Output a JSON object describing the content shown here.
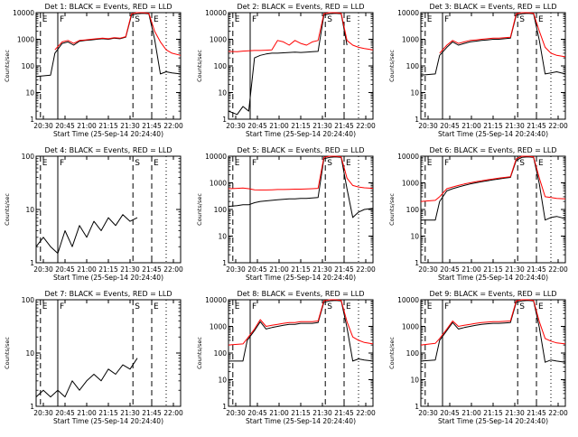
{
  "figure": {
    "x_label": "Start Time (25-Sep-14 20:24:40)",
    "y_label": "Counts/sec",
    "x_ticks": [
      "20:30",
      "20:45",
      "21:00",
      "21:15",
      "21:30",
      "21:45",
      "22:00"
    ],
    "colors": {
      "events": "#000000",
      "lld": "#ff0000",
      "axes": "#000000",
      "background": "#ffffff"
    }
  },
  "chart_data": [
    {
      "type": "line",
      "title": "Det 1: BLACK = Events, RED = LLD",
      "yscale": "log",
      "ylim": [
        1,
        10000
      ],
      "y_ticks": [
        "1",
        "10",
        "100",
        "1000",
        "10000"
      ],
      "xlim": [
        0,
        100
      ],
      "x": [
        0,
        10,
        13,
        18,
        22,
        26,
        30,
        34,
        38,
        42,
        46,
        50,
        54,
        58,
        62,
        66,
        70,
        74,
        78,
        82,
        86,
        90,
        94,
        100
      ],
      "events_gaps": [
        [
          10,
          13
        ],
        [
          82,
          86
        ]
      ],
      "lld_gaps": [
        [
          0,
          13
        ]
      ],
      "series": [
        {
          "name": "Events",
          "color": "#000000",
          "values": [
            40,
            45,
            300,
            700,
            800,
            600,
            850,
            900,
            950,
            1000,
            1050,
            1000,
            1100,
            1050,
            1200,
            8000,
            9000,
            9500,
            9000,
            1000,
            50,
            60,
            55,
            50
          ]
        },
        {
          "name": "LLD",
          "color": "#ff0000",
          "values": [
            0,
            0,
            400,
            800,
            900,
            700,
            900,
            950,
            1000,
            1050,
            1100,
            1050,
            1150,
            1100,
            1250,
            9000,
            10000,
            10000,
            9500,
            2000,
            800,
            400,
            300,
            250
          ]
        }
      ],
      "markers": [
        {
          "label": "E",
          "x": 3
        },
        {
          "label": "F",
          "x": 15
        },
        {
          "label": "S",
          "x": 67
        },
        {
          "label": "E",
          "x": 80
        }
      ]
    },
    {
      "type": "line",
      "title": "Det 2: BLACK = Events, RED = LLD",
      "yscale": "log",
      "ylim": [
        1,
        10000
      ],
      "y_ticks": [
        "1",
        "10",
        "100",
        "1000",
        "10000"
      ],
      "xlim": [
        0,
        100
      ],
      "x": [
        0,
        6,
        10,
        14,
        18,
        22,
        26,
        30,
        34,
        38,
        42,
        46,
        50,
        54,
        58,
        62,
        66,
        70,
        74,
        78,
        82,
        86,
        90,
        94,
        100
      ],
      "events_gaps": [
        [
          12,
          14
        ],
        [
          82,
          100
        ]
      ],
      "lld_gaps": [],
      "series": [
        {
          "name": "Events",
          "color": "#000000",
          "values": [
            2,
            1.5,
            3,
            2,
            200,
            250,
            280,
            300,
            300,
            310,
            320,
            330,
            320,
            330,
            340,
            350,
            8000,
            9000,
            9500,
            9000,
            600,
            2,
            1,
            1,
            1
          ]
        },
        {
          "name": "LLD",
          "color": "#ff0000",
          "values": [
            350,
            340,
            360,
            370,
            380,
            380,
            390,
            400,
            900,
            800,
            600,
            900,
            700,
            600,
            800,
            900,
            9000,
            10000,
            10000,
            9500,
            900,
            600,
            500,
            450,
            400
          ]
        }
      ],
      "markers": [
        {
          "label": "E",
          "x": 3
        },
        {
          "label": "F",
          "x": 15
        },
        {
          "label": "S",
          "x": 67
        },
        {
          "label": "E",
          "x": 80
        }
      ]
    },
    {
      "type": "line",
      "title": "Det 3: BLACK = Events, RED = LLD",
      "yscale": "log",
      "ylim": [
        1,
        10000
      ],
      "y_ticks": [
        "1",
        "10",
        "100",
        "1000",
        "10000"
      ],
      "xlim": [
        0,
        100
      ],
      "x": [
        0,
        10,
        13,
        18,
        22,
        26,
        30,
        34,
        38,
        42,
        46,
        50,
        54,
        58,
        62,
        66,
        70,
        74,
        78,
        82,
        86,
        90,
        94,
        100
      ],
      "events_gaps": [
        [
          10,
          13
        ],
        [
          82,
          86
        ]
      ],
      "lld_gaps": [
        [
          0,
          13
        ]
      ],
      "series": [
        {
          "name": "Events",
          "color": "#000000",
          "values": [
            45,
            50,
            250,
            500,
            800,
            600,
            700,
            800,
            850,
            900,
            950,
            1000,
            1000,
            1050,
            1100,
            8000,
            9000,
            9500,
            9000,
            900,
            50,
            55,
            60,
            50
          ]
        },
        {
          "name": "LLD",
          "color": "#ff0000",
          "values": [
            0,
            0,
            300,
            600,
            900,
            700,
            800,
            900,
            950,
            1000,
            1050,
            1100,
            1100,
            1150,
            1200,
            9000,
            10000,
            10000,
            9500,
            2000,
            500,
            300,
            250,
            220
          ]
        }
      ],
      "markers": [
        {
          "label": "E",
          "x": 3
        },
        {
          "label": "F",
          "x": 15
        },
        {
          "label": "S",
          "x": 67
        },
        {
          "label": "E",
          "x": 80
        }
      ]
    },
    {
      "type": "line",
      "title": "Det 4: BLACK = Events, RED = LLD",
      "yscale": "log",
      "ylim": [
        1,
        100
      ],
      "y_ticks": [
        "1",
        "10",
        "100"
      ],
      "xlim": [
        0,
        100
      ],
      "x": [
        0,
        5,
        10,
        15,
        20,
        25,
        30,
        35,
        40,
        45,
        50,
        55,
        60,
        65,
        70
      ],
      "events_gaps": [],
      "lld_gaps": [],
      "series": [
        {
          "name": "Events",
          "color": "#000000",
          "values": [
            2,
            3,
            2,
            1.5,
            4,
            2,
            5,
            3,
            6,
            4,
            7,
            5,
            8,
            6,
            7
          ]
        }
      ],
      "markers": [
        {
          "label": "E",
          "x": 3
        },
        {
          "label": "F",
          "x": 15
        },
        {
          "label": "S",
          "x": 67
        },
        {
          "label": "E",
          "x": 80
        }
      ]
    },
    {
      "type": "line",
      "title": "Det 5: BLACK = Events, RED = LLD",
      "yscale": "log",
      "ylim": [
        1,
        10000
      ],
      "y_ticks": [
        "1",
        "10",
        "100",
        "1000",
        "10000"
      ],
      "xlim": [
        0,
        100
      ],
      "x": [
        0,
        6,
        10,
        14,
        18,
        22,
        26,
        30,
        34,
        38,
        42,
        46,
        50,
        54,
        58,
        62,
        66,
        70,
        74,
        78,
        82,
        86,
        90,
        94,
        100
      ],
      "events_gaps": [
        [
          82,
          86
        ]
      ],
      "lld_gaps": [],
      "series": [
        {
          "name": "Events",
          "color": "#000000",
          "values": [
            130,
            140,
            150,
            150,
            180,
            200,
            210,
            220,
            230,
            240,
            250,
            250,
            260,
            260,
            270,
            280,
            8000,
            9000,
            9500,
            9000,
            600,
            50,
            80,
            100,
            110
          ]
        },
        {
          "name": "LLD",
          "color": "#ff0000",
          "values": [
            600,
            620,
            640,
            600,
            550,
            540,
            540,
            550,
            560,
            560,
            570,
            580,
            580,
            590,
            600,
            620,
            9000,
            10000,
            10000,
            9500,
            1500,
            800,
            700,
            650,
            620
          ]
        }
      ],
      "markers": [
        {
          "label": "E",
          "x": 3
        },
        {
          "label": "F",
          "x": 15
        },
        {
          "label": "S",
          "x": 67
        },
        {
          "label": "E",
          "x": 80
        }
      ]
    },
    {
      "type": "line",
      "title": "Det 6: BLACK = Events, RED = LLD",
      "yscale": "log",
      "ylim": [
        1,
        10000
      ],
      "y_ticks": [
        "1",
        "10",
        "100",
        "1000",
        "10000"
      ],
      "xlim": [
        0,
        100
      ],
      "x": [
        0,
        10,
        13,
        18,
        22,
        26,
        30,
        34,
        38,
        42,
        46,
        50,
        54,
        58,
        62,
        66,
        70,
        74,
        78,
        82,
        86,
        90,
        94,
        100
      ],
      "events_gaps": [
        [
          10,
          13
        ],
        [
          82,
          86
        ]
      ],
      "lld_gaps": [],
      "series": [
        {
          "name": "Events",
          "color": "#000000",
          "values": [
            40,
            40,
            200,
            500,
            600,
            700,
            800,
            900,
            1000,
            1100,
            1200,
            1300,
            1400,
            1500,
            1600,
            7000,
            9000,
            9500,
            9000,
            900,
            40,
            50,
            55,
            45
          ]
        },
        {
          "name": "LLD",
          "color": "#ff0000",
          "values": [
            200,
            220,
            300,
            600,
            700,
            800,
            900,
            1000,
            1100,
            1200,
            1300,
            1400,
            1500,
            1600,
            1700,
            8000,
            10000,
            10000,
            9500,
            1500,
            300,
            280,
            260,
            250
          ]
        }
      ],
      "markers": [
        {
          "label": "E",
          "x": 3
        },
        {
          "label": "F",
          "x": 15
        },
        {
          "label": "S",
          "x": 67
        },
        {
          "label": "E",
          "x": 80
        }
      ]
    },
    {
      "type": "line",
      "title": "Det 7: BLACK = Events, RED = LLD",
      "yscale": "log",
      "ylim": [
        1,
        100
      ],
      "y_ticks": [
        "1",
        "10",
        "100"
      ],
      "xlim": [
        0,
        100
      ],
      "x": [
        0,
        5,
        10,
        15,
        20,
        25,
        30,
        35,
        40,
        45,
        50,
        55,
        60,
        65,
        70
      ],
      "events_gaps": [],
      "lld_gaps": [],
      "series": [
        {
          "name": "Events",
          "color": "#000000",
          "values": [
            1.5,
            2,
            1.5,
            2,
            1.5,
            3,
            2,
            3,
            4,
            3,
            5,
            4,
            6,
            5,
            8
          ]
        }
      ],
      "markers": [
        {
          "label": "E",
          "x": 3
        },
        {
          "label": "F",
          "x": 15
        },
        {
          "label": "S",
          "x": 67
        },
        {
          "label": "E",
          "x": 80
        }
      ]
    },
    {
      "type": "line",
      "title": "Det 8: BLACK = Events, RED = LLD",
      "yscale": "log",
      "ylim": [
        1,
        10000
      ],
      "y_ticks": [
        "1",
        "10",
        "100",
        "1000",
        "10000"
      ],
      "xlim": [
        0,
        100
      ],
      "x": [
        0,
        10,
        13,
        18,
        22,
        26,
        30,
        34,
        38,
        42,
        46,
        50,
        54,
        58,
        62,
        66,
        70,
        74,
        78,
        82,
        86,
        90,
        94,
        100
      ],
      "events_gaps": [
        [
          10,
          13
        ],
        [
          82,
          86
        ]
      ],
      "lld_gaps": [],
      "series": [
        {
          "name": "Events",
          "color": "#000000",
          "values": [
            50,
            50,
            300,
            700,
            1500,
            800,
            900,
            1000,
            1100,
            1200,
            1200,
            1300,
            1300,
            1300,
            1400,
            8000,
            9000,
            9500,
            9000,
            900,
            50,
            60,
            55,
            50
          ]
        },
        {
          "name": "LLD",
          "color": "#ff0000",
          "values": [
            200,
            220,
            350,
            800,
            1800,
            1000,
            1100,
            1200,
            1300,
            1400,
            1400,
            1500,
            1500,
            1500,
            1600,
            9000,
            10000,
            10000,
            9500,
            1500,
            400,
            300,
            250,
            220
          ]
        }
      ],
      "markers": [
        {
          "label": "E",
          "x": 3
        },
        {
          "label": "F",
          "x": 15
        },
        {
          "label": "S",
          "x": 67
        },
        {
          "label": "E",
          "x": 80
        }
      ]
    },
    {
      "type": "line",
      "title": "Det 9: BLACK = Events, RED = LLD",
      "yscale": "log",
      "ylim": [
        1,
        10000
      ],
      "y_ticks": [
        "1",
        "10",
        "100",
        "1000",
        "10000"
      ],
      "xlim": [
        0,
        100
      ],
      "x": [
        0,
        10,
        13,
        18,
        22,
        26,
        30,
        34,
        38,
        42,
        46,
        50,
        54,
        58,
        62,
        66,
        70,
        74,
        78,
        82,
        86,
        90,
        94,
        100
      ],
      "events_gaps": [
        [
          10,
          13
        ],
        [
          82,
          86
        ]
      ],
      "lld_gaps": [],
      "series": [
        {
          "name": "Events",
          "color": "#000000",
          "values": [
            50,
            55,
            300,
            700,
            1400,
            800,
            900,
            1000,
            1100,
            1200,
            1250,
            1300,
            1300,
            1350,
            1400,
            8000,
            9000,
            9500,
            9000,
            900,
            45,
            55,
            50,
            45
          ]
        },
        {
          "name": "LLD",
          "color": "#ff0000",
          "values": [
            200,
            230,
            350,
            800,
            1600,
            1000,
            1100,
            1200,
            1300,
            1400,
            1450,
            1500,
            1500,
            1550,
            1600,
            9000,
            10000,
            10000,
            9500,
            1500,
            350,
            280,
            240,
            220
          ]
        }
      ],
      "markers": [
        {
          "label": "E",
          "x": 3
        },
        {
          "label": "F",
          "x": 15
        },
        {
          "label": "S",
          "x": 67
        },
        {
          "label": "E",
          "x": 80
        }
      ]
    }
  ]
}
